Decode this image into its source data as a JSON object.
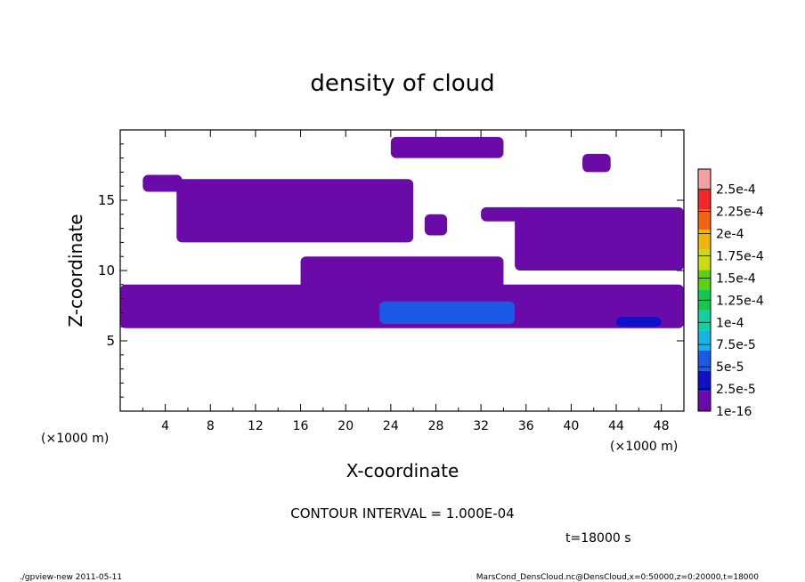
{
  "chart_data": {
    "type": "heatmap",
    "title": "density of cloud",
    "xlabel": "X-coordinate",
    "ylabel": "Z-coordinate",
    "x_unit_label": "(×1000 m)",
    "x_unit_label_right": "(×1000 m)",
    "xlim": [
      0,
      50
    ],
    "ylim": [
      0,
      20
    ],
    "x_ticks": [
      4,
      8,
      12,
      16,
      20,
      24,
      28,
      32,
      36,
      40,
      44,
      48
    ],
    "y_ticks": [
      5,
      10,
      15
    ],
    "contour_interval": "CONTOUR INTERVAL = 1.000E-04",
    "time_label": "t=18000 s",
    "colorbar": {
      "levels": [
        "1e-16",
        "2.5e-5",
        "5e-5",
        "7.5e-5",
        "1e-4",
        "1.25e-4",
        "1.5e-4",
        "1.75e-4",
        "2e-4",
        "2.25e-4",
        "2.5e-4"
      ],
      "colors": [
        "#6a0aa8",
        "#1010c8",
        "#1a5ae6",
        "#14b4e6",
        "#10d2a0",
        "#12c850",
        "#58d212",
        "#c8dc10",
        "#f0b40a",
        "#f06414",
        "#f02828",
        "#f4a0a0"
      ]
    },
    "cloud_regions": [
      {
        "x": [
          0.0,
          50.0
        ],
        "z": [
          5.9,
          9.0
        ],
        "value": "1e-16"
      },
      {
        "x": [
          23.0,
          35.0
        ],
        "z": [
          6.2,
          7.8
        ],
        "value": "5e-5"
      },
      {
        "x": [
          44.0,
          48.0
        ],
        "z": [
          6.0,
          6.7
        ],
        "value": "2.5e-5"
      },
      {
        "x": [
          2.0,
          5.5
        ],
        "z": [
          15.6,
          16.8
        ],
        "value": "1e-16"
      },
      {
        "x": [
          5.0,
          26.0
        ],
        "z": [
          12.0,
          16.5
        ],
        "value": "1e-16"
      },
      {
        "x": [
          16.0,
          34.0
        ],
        "z": [
          8.5,
          11.0
        ],
        "value": "1e-16"
      },
      {
        "x": [
          24.0,
          34.0
        ],
        "z": [
          18.0,
          19.5
        ],
        "value": "1e-16"
      },
      {
        "x": [
          27.0,
          29.0
        ],
        "z": [
          12.5,
          14.0
        ],
        "value": "1e-16"
      },
      {
        "x": [
          32.0,
          36.0
        ],
        "z": [
          13.5,
          14.5
        ],
        "value": "1e-16"
      },
      {
        "x": [
          35.0,
          50.0
        ],
        "z": [
          10.0,
          14.5
        ],
        "value": "1e-16"
      },
      {
        "x": [
          41.0,
          43.5
        ],
        "z": [
          17.0,
          18.3
        ],
        "value": "1e-16"
      }
    ]
  },
  "footer": {
    "left": "./gpview-new   2011-05-11",
    "right": "MarsCond_DensCloud.nc@DensCloud,x=0:50000,z=0:20000,t=18000"
  }
}
